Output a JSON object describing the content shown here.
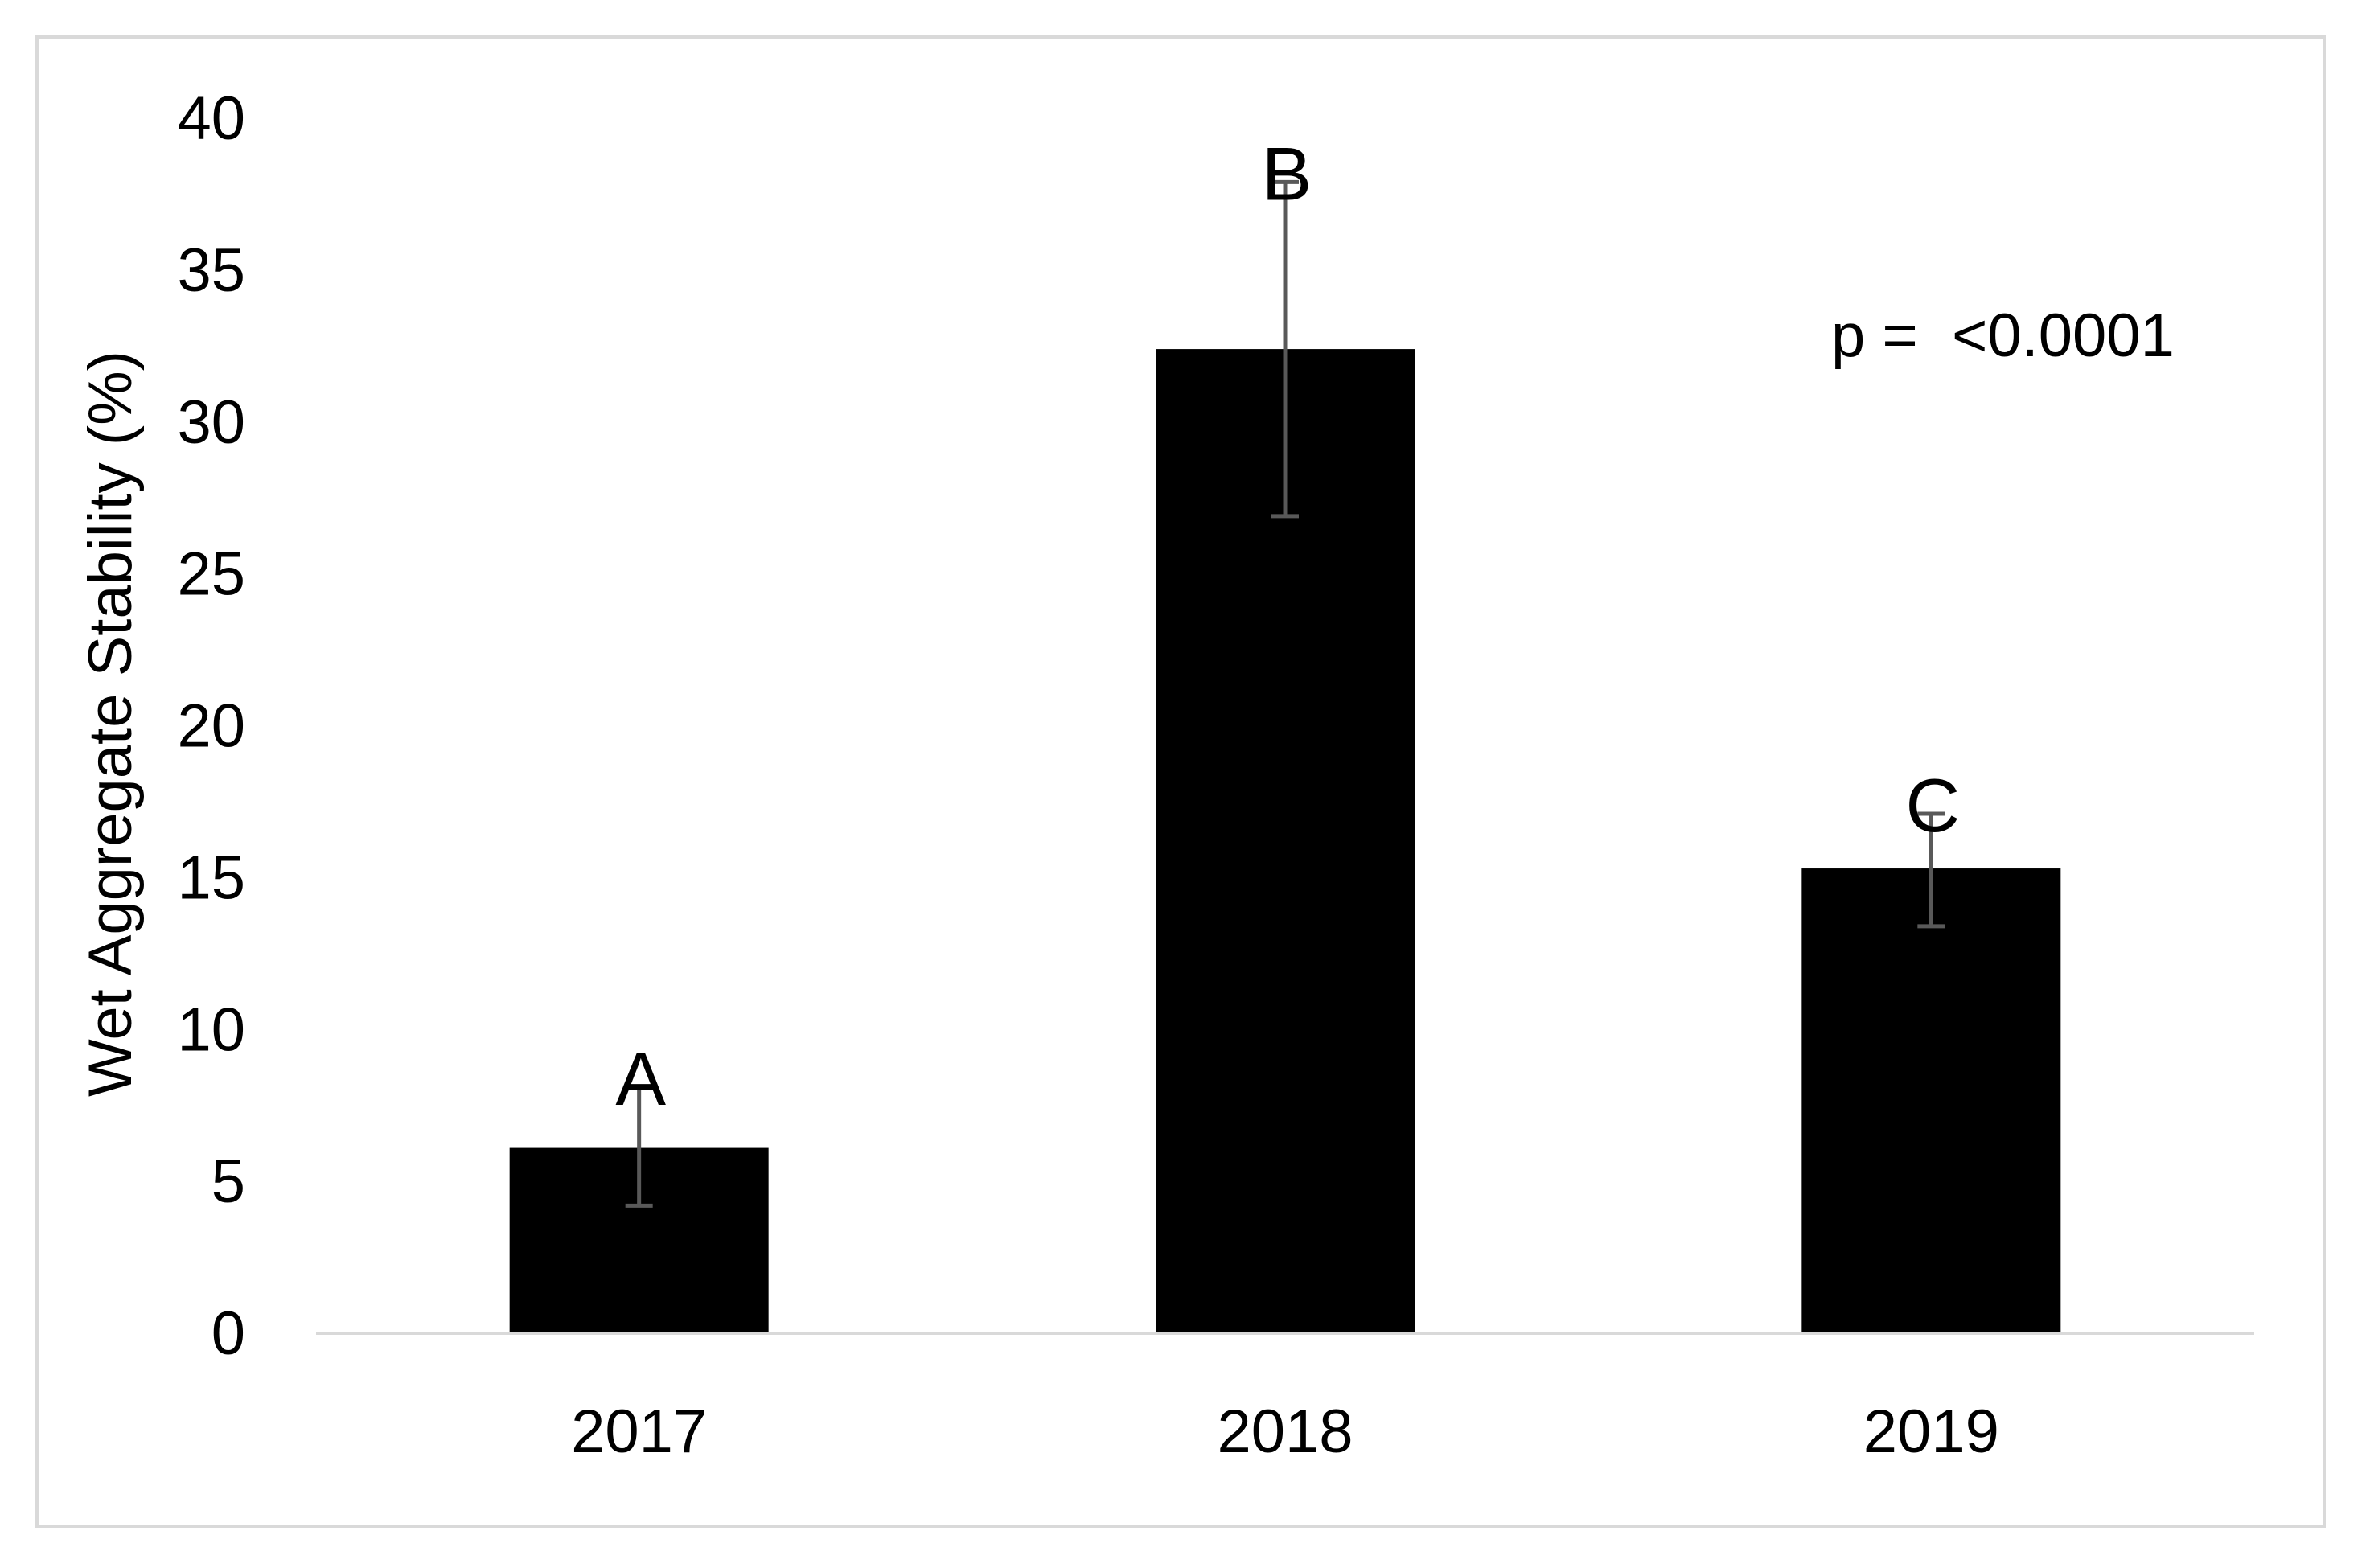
{
  "chart_data": {
    "type": "bar",
    "title": "",
    "xlabel": "",
    "ylabel": "Wet Aggregate Stability (%)",
    "ylim": [
      0,
      40
    ],
    "y_ticks": [
      "0",
      "5",
      "10",
      "15",
      "20",
      "25",
      "30",
      "35",
      "40"
    ],
    "categories": [
      "2017",
      "2018",
      "2019"
    ],
    "values": [
      6.1,
      32.4,
      15.3
    ],
    "error_low": [
      4.2,
      26.9,
      13.4
    ],
    "error_high": [
      8.1,
      37.9,
      17.1
    ],
    "group_letters": [
      "A",
      "B",
      "C"
    ],
    "annotation": "p =  <0.0001",
    "grid": false,
    "legend": "none",
    "colors": {
      "bar": "#000000",
      "error_bar": "#595959",
      "axis": "#d9d9d9"
    }
  }
}
